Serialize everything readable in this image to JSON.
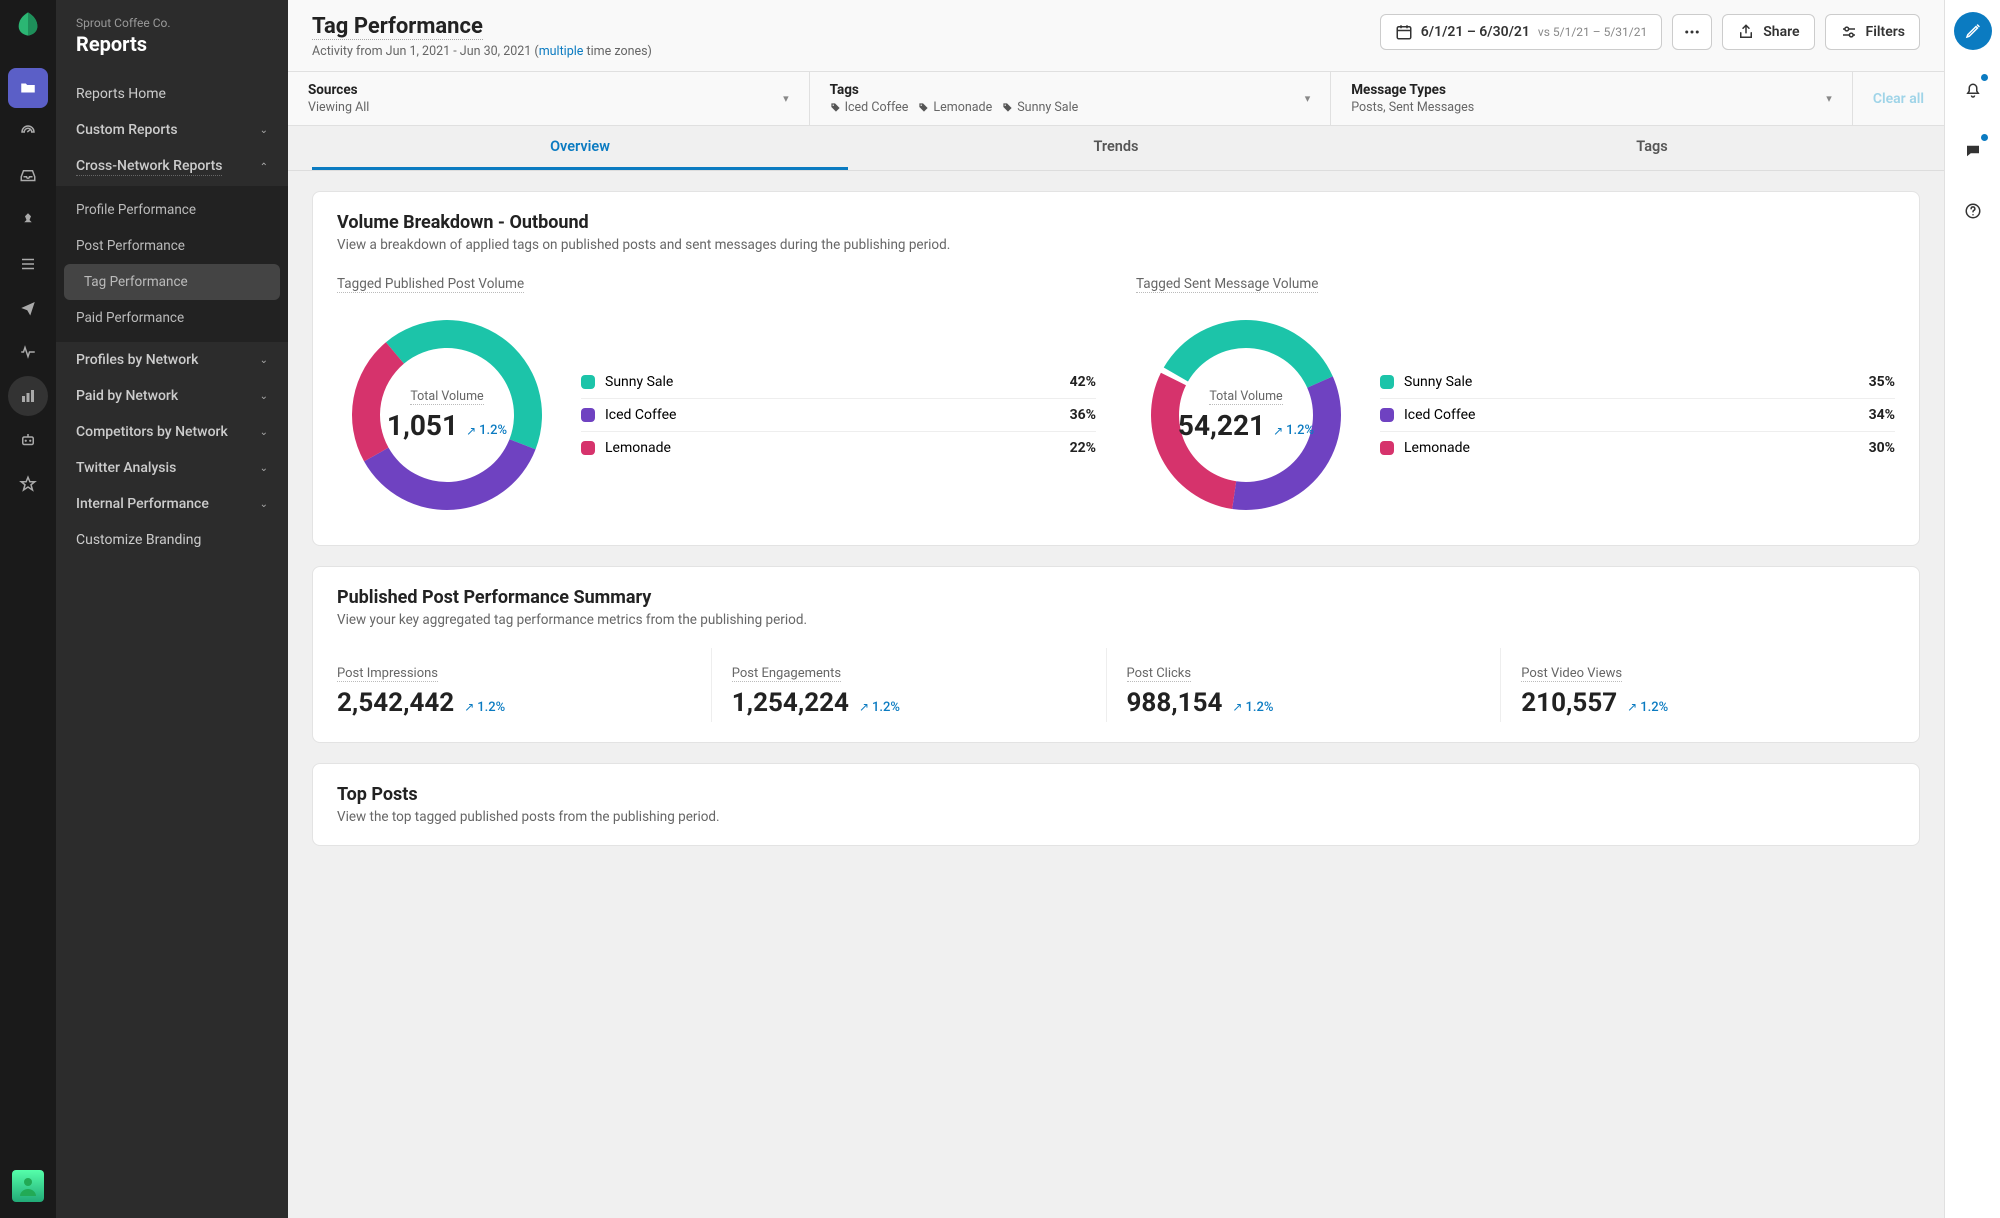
{
  "brand": {
    "org": "Sprout Coffee Co.",
    "section": "Reports"
  },
  "iconRail": [
    {
      "name": "folder-icon",
      "active": true
    },
    {
      "name": "gauge-icon"
    },
    {
      "name": "inbox-icon"
    },
    {
      "name": "pin-icon"
    },
    {
      "name": "list-icon"
    },
    {
      "name": "send-icon"
    },
    {
      "name": "pulse-icon"
    },
    {
      "name": "bar-chart-icon",
      "circled": true
    },
    {
      "name": "bot-icon"
    },
    {
      "name": "star-icon"
    }
  ],
  "sidebar": {
    "items": [
      {
        "label": "Reports Home",
        "type": "link"
      },
      {
        "label": "Custom Reports",
        "type": "section",
        "expanded": false
      },
      {
        "label": "Cross-Network Reports",
        "type": "section",
        "expanded": true,
        "underlined": true,
        "children": [
          {
            "label": "Profile Performance"
          },
          {
            "label": "Post Performance"
          },
          {
            "label": "Tag Performance",
            "active": true
          },
          {
            "label": "Paid Performance"
          }
        ]
      },
      {
        "label": "Profiles by Network",
        "type": "section",
        "expanded": false
      },
      {
        "label": "Paid by Network",
        "type": "section",
        "expanded": false
      },
      {
        "label": "Competitors by Network",
        "type": "section",
        "expanded": false
      },
      {
        "label": "Twitter Analysis",
        "type": "section",
        "expanded": false
      },
      {
        "label": "Internal Performance",
        "type": "section",
        "expanded": false
      },
      {
        "label": "Customize Branding",
        "type": "link"
      }
    ]
  },
  "header": {
    "title": "Tag Performance",
    "subtitle_prefix": "Activity from Jun 1, 2021 - Jun 30, 2021 (",
    "subtitle_link": "multiple",
    "subtitle_suffix": " time zones)",
    "dateRange": {
      "primary": "6/1/21 – 6/30/21",
      "compare": "vs 5/1/21 – 5/31/21"
    },
    "share_label": "Share",
    "filters_label": "Filters"
  },
  "filters": {
    "sources": {
      "label": "Sources",
      "value": "Viewing All"
    },
    "tags": {
      "label": "Tags",
      "chips": [
        "Iced Coffee",
        "Lemonade",
        "Sunny Sale"
      ]
    },
    "messageTypes": {
      "label": "Message Types",
      "value": "Posts, Sent Messages"
    },
    "clear_label": "Clear all"
  },
  "tabs": [
    {
      "label": "Overview",
      "active": true
    },
    {
      "label": "Trends"
    },
    {
      "label": "Tags"
    }
  ],
  "colors": {
    "teal": "#1cc4a9",
    "purple": "#6f42c1",
    "pink": "#d6336c",
    "link": "#0b7bc1"
  },
  "volumeCard": {
    "title": "Volume Breakdown - Outbound",
    "subtitle": "View a breakdown of applied tags on published posts and sent messages during the publishing period.",
    "charts": [
      {
        "title": "Tagged Published Post Volume",
        "centerLabel": "Total Volume",
        "centerValue": "1,051",
        "delta": "1.2%",
        "segments": [
          {
            "label": "Sunny Sale",
            "pct": 42,
            "colorKey": "teal"
          },
          {
            "label": "Iced Coffee",
            "pct": 36,
            "colorKey": "purple"
          },
          {
            "label": "Lemonade",
            "pct": 22,
            "colorKey": "pink"
          }
        ],
        "donut_thickness": 28,
        "donut_radius": 95,
        "startAngle": -40
      },
      {
        "title": "Tagged Sent Message Volume",
        "centerLabel": "Total Volume",
        "centerValue": "54,221",
        "delta": "1.2%",
        "segments": [
          {
            "label": "Sunny Sale",
            "pct": 35,
            "colorKey": "teal"
          },
          {
            "label": "Iced Coffee",
            "pct": 34,
            "colorKey": "purple"
          },
          {
            "label": "Lemonade",
            "pct": 30,
            "colorKey": "pink"
          }
        ],
        "donut_thickness": 28,
        "donut_radius": 95,
        "startAngle": -60
      }
    ]
  },
  "summaryCard": {
    "title": "Published Post Performance Summary",
    "subtitle": "View your key aggregated tag performance metrics from the publishing period.",
    "metrics": [
      {
        "label": "Post Impressions",
        "value": "2,542,442",
        "delta": "1.2%"
      },
      {
        "label": "Post Engagements",
        "value": "1,254,224",
        "delta": "1.2%"
      },
      {
        "label": "Post Clicks",
        "value": "988,154",
        "delta": "1.2%"
      },
      {
        "label": "Post Video Views",
        "value": "210,557",
        "delta": "1.2%"
      }
    ]
  },
  "topPostsCard": {
    "title": "Top Posts",
    "subtitle": "View the top tagged published posts from the publishing period."
  }
}
